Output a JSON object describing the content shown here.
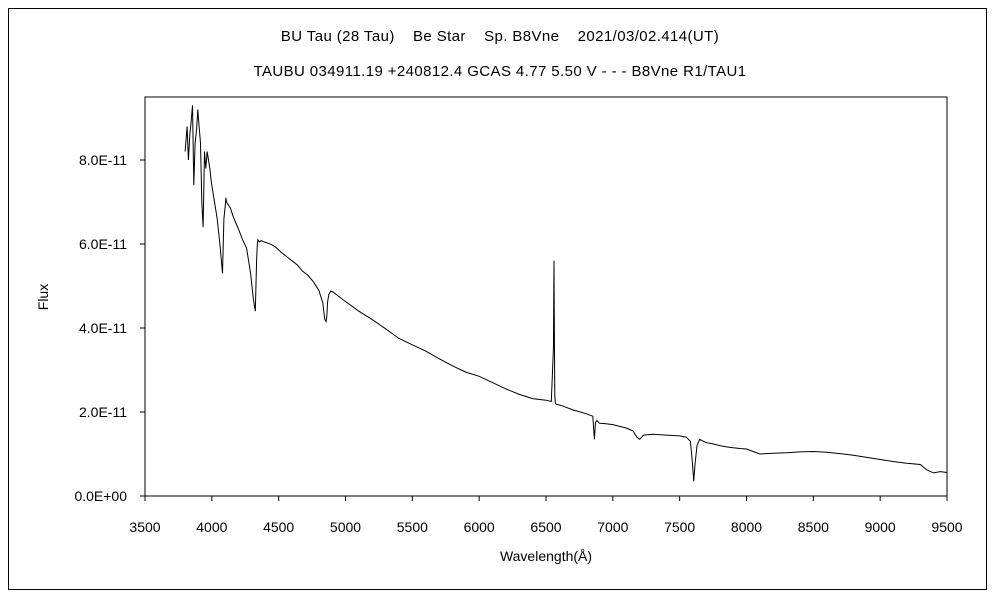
{
  "chart_data": {
    "type": "line",
    "title": "BU Tau (28 Tau)    Be Star    Sp. B8Vne    2021/03/02.414(UT)",
    "subtitle": "TAUBU 034911.19 +240812.4 GCAS 4.77 5.50 V - - - B8Vne R1/TAU1",
    "xlabel": "Wavelength(Å)",
    "ylabel": "Flux",
    "xlim": [
      3500,
      9500
    ],
    "ylim": [
      0,
      9.5e-11
    ],
    "x_ticks": [
      3500,
      4000,
      4500,
      5000,
      5500,
      6000,
      6500,
      7000,
      7500,
      8000,
      8500,
      9000,
      9500
    ],
    "x_tick_labels": [
      "3500",
      "4000",
      "4500",
      "5000",
      "5500",
      "6000",
      "6500",
      "7000",
      "7500",
      "8000",
      "8500",
      "9000",
      "9500"
    ],
    "y_ticks": [
      0,
      2e-11,
      4e-11,
      6e-11,
      8e-11
    ],
    "y_tick_labels": [
      "0.0E+00",
      "2.0E-11",
      "4.0E-11",
      "6.0E-11",
      "8.0E-11"
    ],
    "grid": false,
    "legend": "none",
    "line_color": "#000000",
    "series": [
      {
        "x": [
          3800,
          3815,
          3825,
          3835,
          3845,
          3855,
          3865,
          3875,
          3885,
          3895,
          3905,
          3915,
          3925,
          3935,
          3945,
          3955,
          3965,
          3975,
          3985,
          3995,
          4005,
          4020,
          4040,
          4060,
          4080,
          4090,
          4100,
          4105,
          4110,
          4120,
          4140,
          4160,
          4180,
          4200,
          4230,
          4260,
          4290,
          4310,
          4325,
          4335,
          4340,
          4345,
          4355,
          4370,
          4390,
          4420,
          4450,
          4480,
          4520,
          4560,
          4600,
          4640,
          4680,
          4720,
          4760,
          4800,
          4830,
          4845,
          4855,
          4861,
          4865,
          4875,
          4890,
          4910,
          4950,
          5000,
          5100,
          5200,
          5300,
          5400,
          5500,
          5600,
          5700,
          5800,
          5900,
          6000,
          6100,
          6200,
          6300,
          6400,
          6500,
          6540,
          6555,
          6560,
          6563,
          6566,
          6570,
          6580,
          6620,
          6700,
          6800,
          6850,
          6862,
          6870,
          6880,
          6900,
          6950,
          7000,
          7100,
          7150,
          7180,
          7200,
          7230,
          7300,
          7400,
          7500,
          7550,
          7580,
          7595,
          7605,
          7615,
          7630,
          7650,
          7680,
          7700,
          7750,
          7800,
          7850,
          7900,
          7950,
          8000,
          8100,
          8200,
          8300,
          8400,
          8500,
          8600,
          8700,
          8800,
          8900,
          9000,
          9100,
          9200,
          9300,
          9350,
          9400,
          9450,
          9500
        ],
        "y": [
          8.2e-11,
          8.8e-11,
          8e-11,
          8.6e-11,
          8.9e-11,
          9.3e-11,
          7.4e-11,
          8.4e-11,
          8.7e-11,
          9.2e-11,
          8.8e-11,
          8.4e-11,
          7e-11,
          6.4e-11,
          8.2e-11,
          7.8e-11,
          8.2e-11,
          8e-11,
          7.8e-11,
          7.5e-11,
          7.3e-11,
          7e-11,
          6.6e-11,
          6e-11,
          5.3e-11,
          6.6e-11,
          6.9e-11,
          7.1e-11,
          7e-11,
          6.95e-11,
          6.85e-11,
          6.65e-11,
          6.5e-11,
          6.35e-11,
          6.1e-11,
          5.9e-11,
          5.3e-11,
          4.7e-11,
          4.4e-11,
          5.6e-11,
          6e-11,
          6.1e-11,
          6.05e-11,
          6.08e-11,
          6.05e-11,
          6.02e-11,
          5.98e-11,
          5.92e-11,
          5.8e-11,
          5.7e-11,
          5.6e-11,
          5.5e-11,
          5.35e-11,
          5.25e-11,
          5.1e-11,
          4.9e-11,
          4.6e-11,
          4.2e-11,
          4.15e-11,
          4.3e-11,
          4.6e-11,
          4.8e-11,
          4.88e-11,
          4.85e-11,
          4.75e-11,
          4.63e-11,
          4.4e-11,
          4.2e-11,
          3.98e-11,
          3.75e-11,
          3.6e-11,
          3.45e-11,
          3.27e-11,
          3.1e-11,
          2.95e-11,
          2.85e-11,
          2.7e-11,
          2.55e-11,
          2.42e-11,
          2.32e-11,
          2.28e-11,
          2.25e-11,
          3.5e-11,
          5.6e-11,
          3.8e-11,
          2.4e-11,
          2.2e-11,
          2.18e-11,
          2.15e-11,
          2.05e-11,
          1.96e-11,
          1.9e-11,
          1.35e-11,
          1.75e-11,
          1.8e-11,
          1.73e-11,
          1.72e-11,
          1.7e-11,
          1.62e-11,
          1.55e-11,
          1.4e-11,
          1.35e-11,
          1.45e-11,
          1.47e-11,
          1.45e-11,
          1.43e-11,
          1.4e-11,
          1.3e-11,
          8e-12,
          3.5e-12,
          7.5e-12,
          1.2e-11,
          1.35e-11,
          1.3e-11,
          1.27e-11,
          1.24e-11,
          1.2e-11,
          1.17e-11,
          1.15e-11,
          1.13e-11,
          1.12e-11,
          1e-11,
          1.02e-11,
          1.03e-11,
          1.05e-11,
          1.06e-11,
          1.04e-11,
          1.01e-11,
          9.7e-12,
          9.2e-12,
          8.7e-12,
          8.2e-12,
          7.8e-12,
          7.5e-12,
          6.2e-12,
          5.5e-12,
          5.8e-12,
          5.6e-12
        ]
      }
    ]
  }
}
